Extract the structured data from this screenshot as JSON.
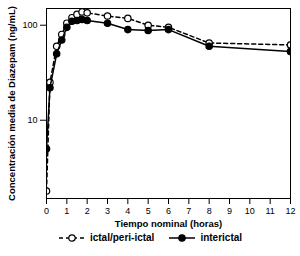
{
  "chart_data": {
    "type": "line",
    "x_label": "Tiempo nominal (horas)",
    "y_label": "Concentración media de Diazepam (ng/mL)",
    "x": [
      0,
      0.17,
      0.5,
      0.75,
      1,
      1.25,
      1.5,
      1.75,
      2,
      3,
      4,
      5,
      6,
      8,
      12
    ],
    "series": [
      {
        "name": "ictal/peri-ictal",
        "color": "#000000",
        "marker": "open circle",
        "line_style": "dashed",
        "values": [
          1.8,
          25,
          60,
          80,
          105,
          120,
          130,
          138,
          135,
          125,
          118,
          100,
          95,
          65,
          62
        ]
      },
      {
        "name": "interictal",
        "color": "#000000",
        "marker": "filled circle",
        "line_style": "solid",
        "values": [
          5,
          22,
          50,
          70,
          95,
          110,
          112,
          115,
          112,
          105,
          90,
          88,
          90,
          60,
          53
        ]
      }
    ],
    "xlim": [
      0,
      12
    ],
    "xticks": [
      0,
      1,
      2,
      3,
      4,
      5,
      6,
      7,
      8,
      9,
      10,
      11,
      12
    ],
    "ylim": [
      1.5,
      150
    ],
    "yticks": [
      10,
      100
    ],
    "log": "y",
    "grid": false,
    "legend": "bottom"
  }
}
